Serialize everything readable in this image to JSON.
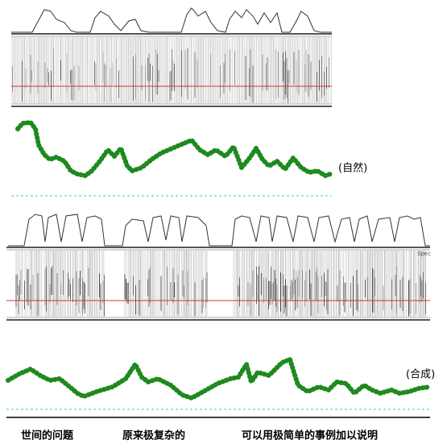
{
  "labels": {
    "natural": "(自然)",
    "synthetic": "(合成)",
    "spec": "Spec"
  },
  "phrases": [
    "世间的问题",
    "原来极复杂的",
    "可以用极简单的事例加以说明"
  ]
}
